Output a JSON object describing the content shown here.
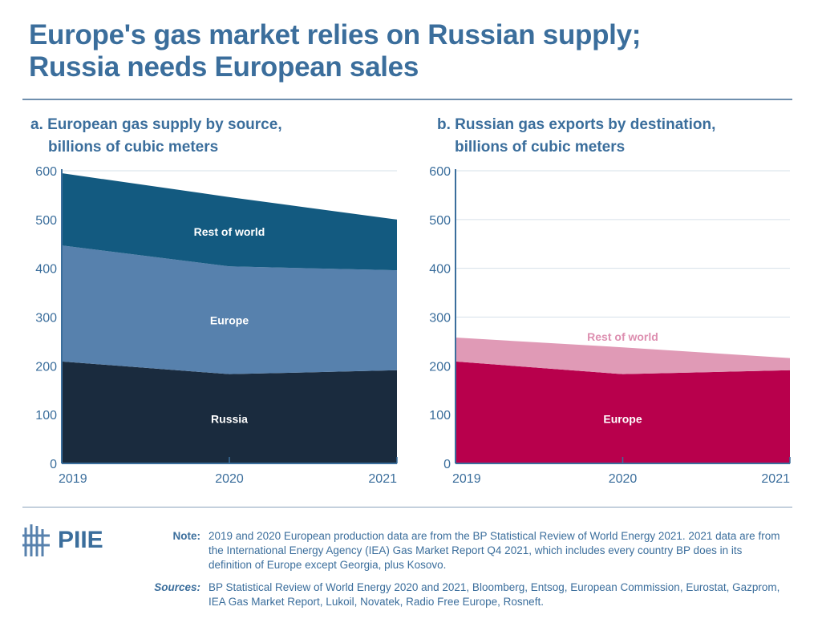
{
  "title": [
    "Europe's gas market relies on Russian supply;",
    "Russia needs European sales"
  ],
  "footer": {
    "logo_text": "PIIE",
    "note_label": "Note:",
    "note_text": "2019 and 2020 European production data are from the BP Statistical Review of World Energy 2021. 2021 data are from the International Energy Agency (IEA) Gas Market Report Q4 2021, which includes every country BP does in its definition of Europe except Georgia, plus Kosovo.",
    "sources_label": "Sources:",
    "sources_text": "BP Statistical Review of World Energy 2020 and 2021, Bloomberg, Entsog, European Commission, Eurostat, Gazprom, IEA Gas Market Report, Lukoil, Novatek, Radio Free Europe, Rosneft."
  },
  "chart_data": [
    {
      "type": "area",
      "stacked": true,
      "title": [
        "a. European gas supply by source,",
        "billions of cubic meters"
      ],
      "x": [
        "2019",
        "2020",
        "2021"
      ],
      "ylim": [
        0,
        600
      ],
      "yticks": [
        0,
        100,
        200,
        300,
        400,
        500,
        600
      ],
      "series": [
        {
          "name": "Russia",
          "values": [
            209,
            183,
            191
          ],
          "color": "#1a2b3e",
          "label_color": "#ffffff"
        },
        {
          "name": "Europe",
          "values": [
            238,
            221,
            205
          ],
          "color": "#5781ad",
          "label_color": "#ffffff"
        },
        {
          "name": "Rest of world",
          "values": [
            148,
            142,
            104
          ],
          "color": "#135a80",
          "label_color": "#ffffff"
        }
      ]
    },
    {
      "type": "area",
      "stacked": true,
      "title": [
        "b. Russian gas exports by destination,",
        "billions of cubic meters"
      ],
      "x": [
        "2019",
        "2020",
        "2021"
      ],
      "ylim": [
        0,
        600
      ],
      "yticks": [
        0,
        100,
        200,
        300,
        400,
        500,
        600
      ],
      "series": [
        {
          "name": "Europe",
          "values": [
            209,
            183,
            191
          ],
          "color": "#b8004c",
          "label_color": "#ffffff"
        },
        {
          "name": "Rest of world",
          "values": [
            49,
            55,
            25
          ],
          "color": "#e09ab6",
          "label_color": "#dd8fb0"
        }
      ]
    }
  ]
}
